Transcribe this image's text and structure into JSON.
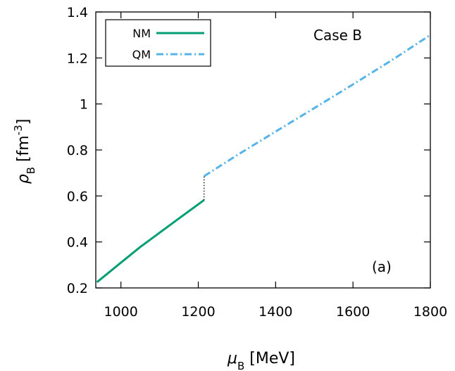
{
  "chart_data": {
    "type": "line",
    "xlabel_symbol": "μ",
    "xlabel_sub": "B",
    "xlabel_unit": " [MeV]",
    "ylabel_symbol": "ρ",
    "ylabel_sub": "B",
    "ylabel_unit_pre": " [fm",
    "ylabel_unit_sup": "-3",
    "ylabel_unit_post": "]",
    "xlim": [
      935,
      1800
    ],
    "ylim": [
      0.2,
      1.4
    ],
    "xticks": [
      1000,
      1200,
      1400,
      1600,
      1800
    ],
    "yticks": [
      0.2,
      0.4,
      0.6,
      0.8,
      1,
      1.2,
      1.4
    ],
    "xtick_labels": [
      "1000",
      "1200",
      "1400",
      "1600",
      "1800"
    ],
    "ytick_labels": [
      "0.2",
      "0.4",
      "0.6",
      "0.8",
      "1",
      "1.2",
      "1.4"
    ],
    "legend_position": "top-left",
    "annotations": {
      "case": "Case B",
      "panel": "(a)"
    },
    "series": [
      {
        "name": "NM",
        "color": "#009e73",
        "style": "solid",
        "x": [
          938,
          1000,
          1050,
          1100,
          1150,
          1215
        ],
        "y": [
          0.225,
          0.31,
          0.378,
          0.44,
          0.502,
          0.582
        ]
      },
      {
        "name": "QM",
        "color": "#56b4e9",
        "style": "dash-dot",
        "x": [
          1215,
          1300,
          1400,
          1500,
          1600,
          1700,
          1800
        ],
        "y": [
          0.686,
          0.777,
          0.88,
          0.982,
          1.085,
          1.19,
          1.3
        ]
      }
    ],
    "transition": {
      "x": 1215,
      "y_from": 0.582,
      "y_to": 0.686,
      "style": "dotted",
      "color": "#000000"
    }
  }
}
